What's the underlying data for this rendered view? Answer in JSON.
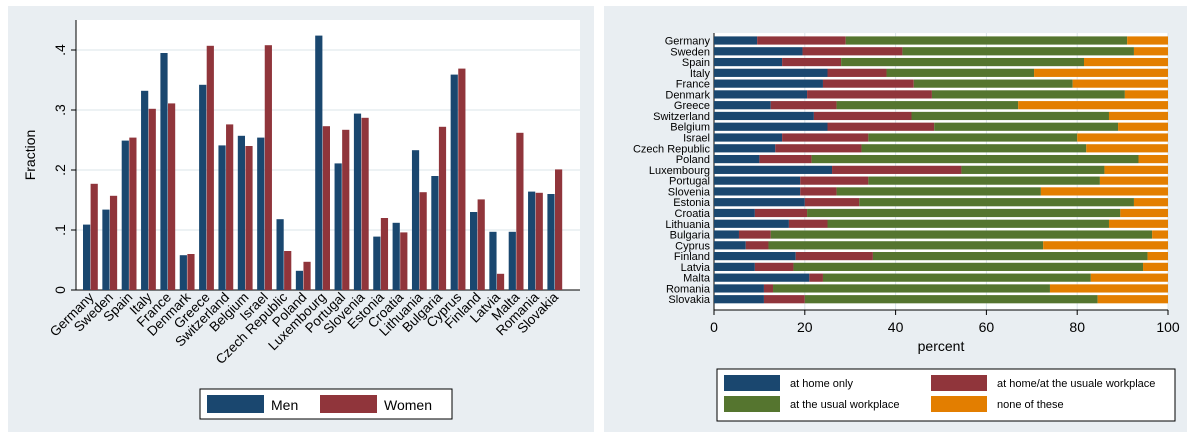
{
  "chart_data": [
    {
      "type": "bar",
      "ylabel": "Fraction",
      "xlabel": "",
      "ylim": [
        0,
        0.45
      ],
      "yticks": [
        0,
        0.1,
        0.2,
        0.3,
        0.4
      ],
      "ytick_labels": [
        "0",
        ".1",
        ".2",
        ".3",
        ".4"
      ],
      "grid": true,
      "legend_position": "bottom",
      "categories": [
        "Germany",
        "Sweden",
        "Spain",
        "Italy",
        "France",
        "Denmark",
        "Greece",
        "Switzerland",
        "Belgium",
        "Israel",
        "Czech Republic",
        "Poland",
        "Luxembourg",
        "Portugal",
        "Slovenia",
        "Estonia",
        "Croatia",
        "Lithuania",
        "Bulgaria",
        "Cyprus",
        "Finland",
        "Latvia",
        "Malta",
        "Romania",
        "Slovakia"
      ],
      "series": [
        {
          "name": "Men",
          "color": "#1a476f",
          "values": [
            0.109,
            0.134,
            0.249,
            0.332,
            0.395,
            0.058,
            0.342,
            0.241,
            0.257,
            0.254,
            0.118,
            0.032,
            0.424,
            0.211,
            0.294,
            0.089,
            0.112,
            0.233,
            0.19,
            0.359,
            0.13,
            0.097,
            0.097,
            0.164,
            0.16
          ]
        },
        {
          "name": "Women",
          "color": "#90353b",
          "values": [
            0.177,
            0.157,
            0.254,
            0.302,
            0.311,
            0.06,
            0.407,
            0.276,
            0.24,
            0.408,
            0.065,
            0.047,
            0.273,
            0.267,
            0.287,
            0.12,
            0.096,
            0.163,
            0.272,
            0.369,
            0.151,
            0.027,
            0.262,
            0.162,
            0.201
          ]
        }
      ]
    },
    {
      "type": "bar",
      "orientation": "horizontal",
      "stacked": true,
      "xlabel": "percent",
      "ylabel": "",
      "xlim": [
        0,
        100
      ],
      "xticks": [
        0,
        20,
        40,
        60,
        80,
        100
      ],
      "grid": true,
      "legend_position": "bottom",
      "categories": [
        "Germany",
        "Sweden",
        "Spain",
        "Italy",
        "France",
        "Denmark",
        "Greece",
        "Switzerland",
        "Belgium",
        "Israel",
        "Czech Republic",
        "Poland",
        "Luxembourg",
        "Portugal",
        "Slovenia",
        "Estonia",
        "Croatia",
        "Lithuania",
        "Bulgaria",
        "Cyprus",
        "Finland",
        "Latvia",
        "Malta",
        "Romania",
        "Slovakia"
      ],
      "series": [
        {
          "name": "at home only",
          "color": "#1a476f",
          "values": [
            9.5,
            19.5,
            15,
            25,
            24,
            20.5,
            12.5,
            22,
            25,
            15,
            13.5,
            10,
            26,
            19,
            19,
            20,
            9,
            16.5,
            5.5,
            7,
            18,
            9,
            21,
            11,
            11
          ]
        },
        {
          "name": "at home/at the usuale workplace",
          "color": "#90353b",
          "values": [
            19.5,
            22,
            13,
            13,
            20,
            27.5,
            14.5,
            21.5,
            23.5,
            19,
            19,
            11.5,
            28.5,
            15,
            8,
            12,
            11.5,
            8.5,
            7,
            5,
            17,
            8.5,
            3,
            2,
            9
          ]
        },
        {
          "name": "at the usual workplace",
          "color": "#55752f",
          "values": [
            62,
            51,
            53.5,
            32.5,
            35,
            42.5,
            40,
            43.5,
            40.5,
            46,
            49.5,
            72,
            31.5,
            51,
            45,
            60.5,
            69,
            62,
            84,
            60.5,
            60.5,
            77,
            59,
            61,
            64.5
          ]
        },
        {
          "name": "none of these",
          "color": "#e37e00",
          "values": [
            9,
            7.5,
            18.5,
            29.5,
            21,
            9.5,
            33,
            13,
            11,
            20,
            18,
            6.5,
            14,
            15,
            28,
            7.5,
            10.5,
            13,
            3.5,
            27.5,
            4.5,
            5.5,
            17,
            26,
            15.5
          ]
        }
      ]
    }
  ]
}
